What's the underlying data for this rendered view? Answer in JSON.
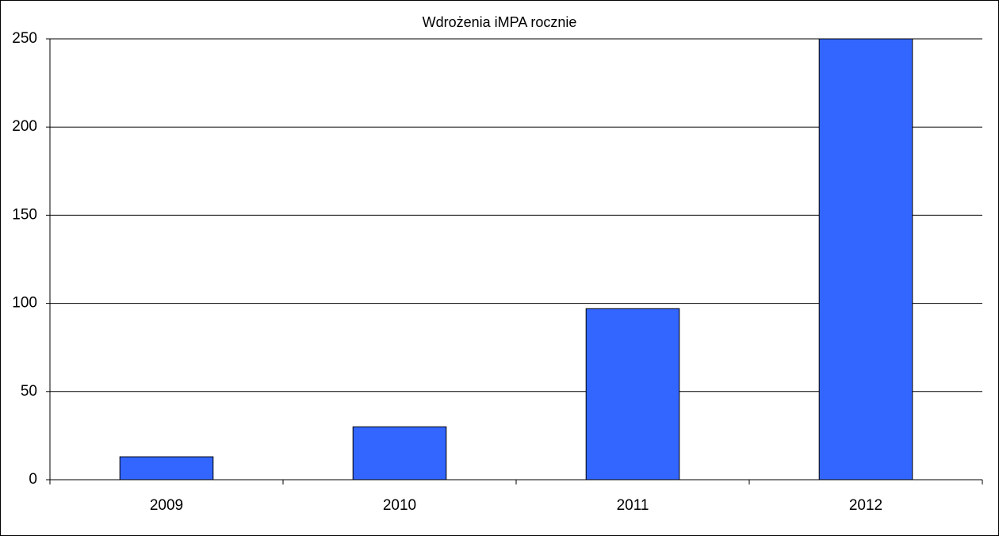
{
  "chart_data": {
    "type": "bar",
    "title": "Wdrożenia iMPA rocznie",
    "categories": [
      "2009",
      "2010",
      "2011",
      "2012"
    ],
    "values": [
      13,
      30,
      97,
      250
    ],
    "color": "#3366ff",
    "ylim": [
      0,
      250
    ],
    "yticks": [
      0,
      50,
      100,
      150,
      200,
      250
    ],
    "grid": true
  }
}
